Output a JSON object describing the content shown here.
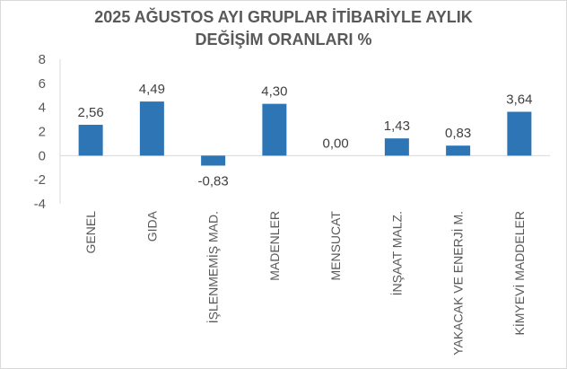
{
  "chart_data": {
    "type": "bar",
    "title_lines": [
      "2025 AĞUSTOS AYI GRUPLAR İTİBARİYLE AYLIK",
      "DEĞİŞİM ORANLARI %"
    ],
    "categories": [
      "GENEL",
      "GIDA",
      "İŞLENMEMİŞ MAD.",
      "MADENLER",
      "MENSUCAT",
      "İNŞAAT MALZ.",
      "YAKACAK VE ENERJİ M.",
      "KİMYEVİ MADDELER"
    ],
    "values": [
      2.56,
      4.49,
      -0.83,
      4.3,
      0.0,
      1.43,
      0.83,
      3.64
    ],
    "data_labels": [
      "2,56",
      "4,49",
      "-0,83",
      "4,30",
      "0,00",
      "1,43",
      "0,83",
      "3,64"
    ],
    "yticks": [
      "8",
      "6",
      "4",
      "2",
      "0",
      "-2",
      "-4"
    ],
    "ylim": [
      -4,
      8
    ],
    "grid": false,
    "legend": "none",
    "bar_color": "#2e75b6"
  }
}
